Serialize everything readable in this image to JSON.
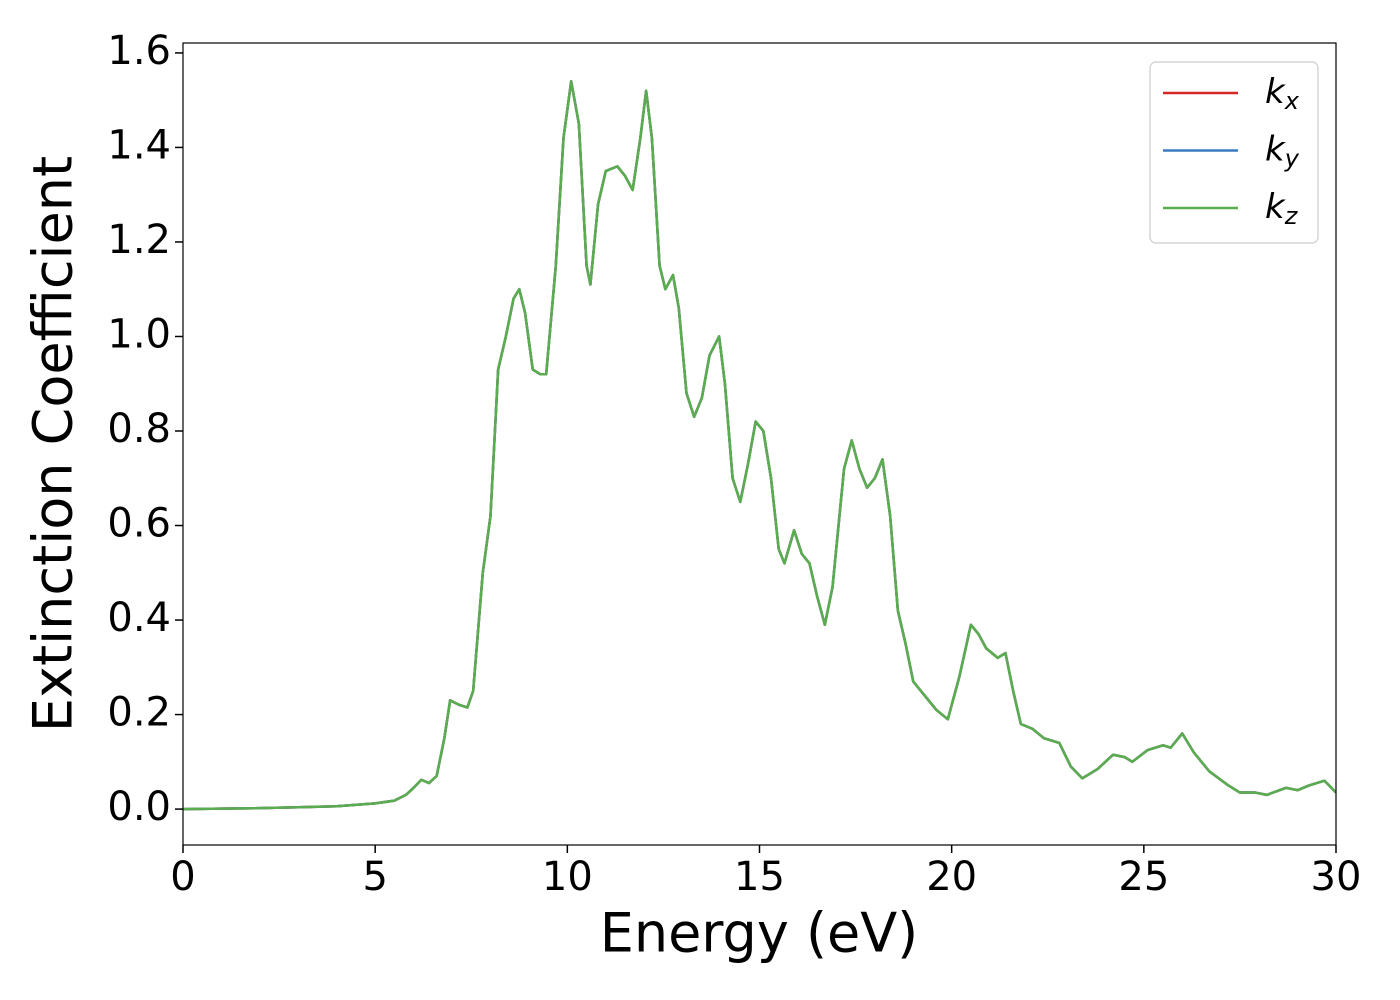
{
  "chart_data": {
    "type": "line",
    "xlabel": "Energy (eV)",
    "ylabel": "Extinction Coefficient",
    "xlim": [
      0,
      30
    ],
    "xticks": [
      0,
      5,
      10,
      15,
      20,
      25,
      30
    ],
    "ylim": [
      -0.076,
      1.621
    ],
    "yticks": [
      {
        "value": 0,
        "label": "0.0"
      },
      0.2,
      0.4,
      0.6,
      0.8,
      {
        "value": 1,
        "label": "1.0"
      },
      1.2,
      1.4,
      1.6
    ],
    "legend": "upper right",
    "x": [
      0,
      1,
      2,
      3,
      4,
      5,
      5.5,
      5.8,
      6.0,
      6.2,
      6.4,
      6.6,
      6.8,
      6.95,
      7.2,
      7.4,
      7.55,
      7.8,
      8.0,
      8.2,
      8.4,
      8.6,
      8.75,
      8.9,
      9.1,
      9.3,
      9.45,
      9.7,
      9.9,
      10.1,
      10.3,
      10.5,
      10.6,
      10.8,
      11.0,
      11.3,
      11.5,
      11.7,
      11.9,
      12.05,
      12.2,
      12.4,
      12.55,
      12.75,
      12.9,
      13.1,
      13.3,
      13.5,
      13.7,
      13.95,
      14.1,
      14.3,
      14.5,
      14.7,
      14.9,
      15.1,
      15.3,
      15.5,
      15.65,
      15.9,
      16.1,
      16.3,
      16.5,
      16.7,
      16.9,
      17.2,
      17.4,
      17.6,
      17.8,
      18.0,
      18.2,
      18.4,
      18.6,
      18.8,
      19.0,
      19.3,
      19.6,
      19.9,
      20.2,
      20.5,
      20.7,
      20.9,
      21.2,
      21.4,
      21.6,
      21.8,
      22.1,
      22.4,
      22.8,
      23.1,
      23.4,
      23.8,
      24.2,
      24.5,
      24.7,
      25.1,
      25.5,
      25.7,
      26.0,
      26.3,
      26.7,
      27.2,
      27.5,
      27.9,
      28.2,
      28.7,
      29.0,
      29.3,
      29.7,
      30.0
    ],
    "series": [
      {
        "name": "kx",
        "color": "#d62728",
        "values": [
          0,
          0.001,
          0.002,
          0.004,
          0.006,
          0.012,
          0.018,
          0.03,
          0.045,
          0.062,
          0.055,
          0.07,
          0.15,
          0.23,
          0.22,
          0.215,
          0.25,
          0.5,
          0.62,
          0.93,
          1.0,
          1.08,
          1.1,
          1.05,
          0.93,
          0.92,
          0.92,
          1.15,
          1.42,
          1.54,
          1.45,
          1.15,
          1.11,
          1.28,
          1.35,
          1.36,
          1.34,
          1.31,
          1.42,
          1.52,
          1.42,
          1.15,
          1.1,
          1.13,
          1.06,
          0.88,
          0.83,
          0.87,
          0.96,
          1.0,
          0.9,
          0.7,
          0.65,
          0.73,
          0.82,
          0.8,
          0.7,
          0.55,
          0.52,
          0.59,
          0.54,
          0.52,
          0.45,
          0.39,
          0.47,
          0.72,
          0.78,
          0.72,
          0.68,
          0.7,
          0.74,
          0.62,
          0.42,
          0.35,
          0.27,
          0.24,
          0.21,
          0.19,
          0.28,
          0.39,
          0.37,
          0.34,
          0.32,
          0.33,
          0.25,
          0.18,
          0.17,
          0.15,
          0.14,
          0.09,
          0.065,
          0.085,
          0.115,
          0.11,
          0.1,
          0.125,
          0.135,
          0.13,
          0.16,
          0.12,
          0.08,
          0.05,
          0.035,
          0.035,
          0.03,
          0.045,
          0.04,
          0.05,
          0.06,
          0.035
        ]
      },
      {
        "name": "ky",
        "color": "#3a7bbf",
        "values": [
          0,
          0.001,
          0.002,
          0.004,
          0.006,
          0.012,
          0.018,
          0.03,
          0.045,
          0.062,
          0.055,
          0.07,
          0.15,
          0.23,
          0.22,
          0.215,
          0.25,
          0.5,
          0.62,
          0.93,
          1.0,
          1.08,
          1.1,
          1.05,
          0.93,
          0.92,
          0.92,
          1.15,
          1.42,
          1.54,
          1.45,
          1.15,
          1.11,
          1.28,
          1.35,
          1.36,
          1.34,
          1.31,
          1.42,
          1.52,
          1.42,
          1.15,
          1.1,
          1.13,
          1.06,
          0.88,
          0.83,
          0.87,
          0.96,
          1.0,
          0.9,
          0.7,
          0.65,
          0.73,
          0.82,
          0.8,
          0.7,
          0.55,
          0.52,
          0.59,
          0.54,
          0.52,
          0.45,
          0.39,
          0.47,
          0.72,
          0.78,
          0.72,
          0.68,
          0.7,
          0.74,
          0.62,
          0.42,
          0.35,
          0.27,
          0.24,
          0.21,
          0.19,
          0.28,
          0.39,
          0.37,
          0.34,
          0.32,
          0.33,
          0.25,
          0.18,
          0.17,
          0.15,
          0.14,
          0.09,
          0.065,
          0.085,
          0.115,
          0.11,
          0.1,
          0.125,
          0.135,
          0.13,
          0.16,
          0.12,
          0.08,
          0.05,
          0.035,
          0.035,
          0.03,
          0.045,
          0.04,
          0.05,
          0.06,
          0.035
        ]
      },
      {
        "name": "kz",
        "color": "#5aad4e",
        "values": [
          0,
          0.001,
          0.002,
          0.004,
          0.006,
          0.012,
          0.018,
          0.03,
          0.045,
          0.062,
          0.055,
          0.07,
          0.15,
          0.23,
          0.22,
          0.215,
          0.25,
          0.5,
          0.62,
          0.93,
          1.0,
          1.08,
          1.1,
          1.05,
          0.93,
          0.92,
          0.92,
          1.15,
          1.42,
          1.54,
          1.45,
          1.15,
          1.11,
          1.28,
          1.35,
          1.36,
          1.34,
          1.31,
          1.42,
          1.52,
          1.42,
          1.15,
          1.1,
          1.13,
          1.06,
          0.88,
          0.83,
          0.87,
          0.96,
          1.0,
          0.9,
          0.7,
          0.65,
          0.73,
          0.82,
          0.8,
          0.7,
          0.55,
          0.52,
          0.59,
          0.54,
          0.52,
          0.45,
          0.39,
          0.47,
          0.72,
          0.78,
          0.72,
          0.68,
          0.7,
          0.74,
          0.62,
          0.42,
          0.35,
          0.27,
          0.24,
          0.21,
          0.19,
          0.28,
          0.39,
          0.37,
          0.34,
          0.32,
          0.33,
          0.25,
          0.18,
          0.17,
          0.15,
          0.14,
          0.09,
          0.065,
          0.085,
          0.115,
          0.11,
          0.1,
          0.125,
          0.135,
          0.13,
          0.16,
          0.12,
          0.08,
          0.05,
          0.035,
          0.035,
          0.03,
          0.045,
          0.04,
          0.05,
          0.06,
          0.035
        ]
      }
    ]
  }
}
